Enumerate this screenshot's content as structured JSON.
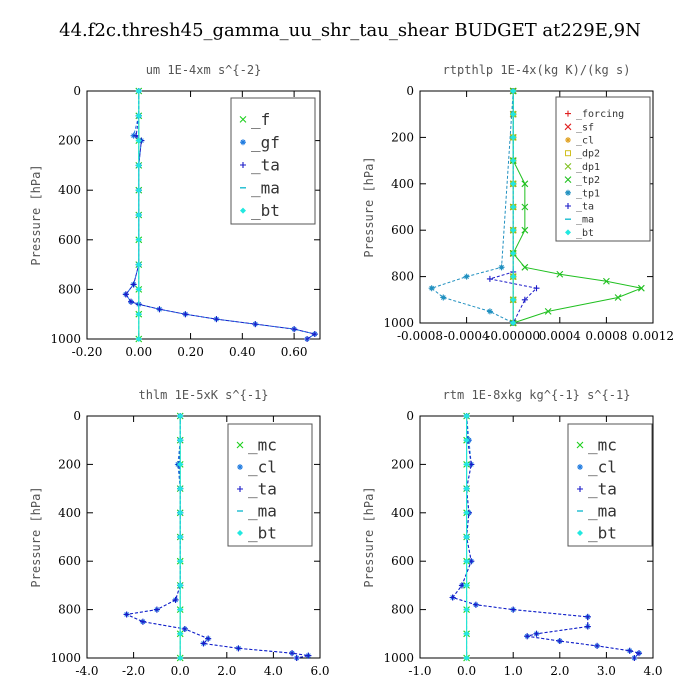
{
  "figure_title": "44.f2c.thresh45_gamma_uu_shr_tau_shear  BUDGET at229E,9N",
  "chart_data": [
    {
      "type": "line",
      "title": "um   1E-4xm s^{-2}",
      "ylabel": "Pressure [hPa]",
      "xlim": [
        -0.2,
        0.7
      ],
      "ylim": [
        1000,
        0
      ],
      "xticks": [
        "-0.20",
        "0.00",
        "0.20",
        "0.40",
        "0.60"
      ],
      "xtick_values": [
        -0.2,
        0.0,
        0.2,
        0.4,
        0.6
      ],
      "yticks": [
        "0",
        "200",
        "400",
        "600",
        "800",
        "1000"
      ],
      "ytick_values": [
        0,
        200,
        400,
        600,
        800,
        1000
      ],
      "legend_font": 16,
      "series": [
        {
          "name": "_f",
          "color": "#1fd01f",
          "marker": "x",
          "x": [
            0,
            0,
            0,
            0,
            0,
            0,
            0,
            0,
            0,
            0,
            0
          ],
          "y": [
            0,
            100,
            200,
            300,
            400,
            500,
            600,
            700,
            800,
            900,
            1000
          ]
        },
        {
          "name": "_gf",
          "color": "#1f7be0",
          "marker": "*",
          "x": [
            0,
            0,
            -0.02,
            0.01,
            0,
            0,
            0,
            0,
            -0.02,
            -0.05,
            -0.03,
            0,
            0.08,
            0.18,
            0.3,
            0.45,
            0.6,
            0.68,
            0.65
          ],
          "y": [
            0,
            100,
            180,
            200,
            300,
            400,
            500,
            700,
            780,
            820,
            850,
            860,
            880,
            900,
            920,
            940,
            960,
            980,
            1000
          ]
        },
        {
          "name": "_ta",
          "color": "#1a1ac8",
          "marker": "+",
          "x": [
            0,
            0,
            -0.01,
            0.01,
            0,
            0,
            0,
            0,
            -0.02,
            -0.05,
            -0.03,
            0,
            0.08,
            0.18,
            0.3,
            0.45,
            0.6,
            0.68,
            0.65
          ],
          "y": [
            0,
            100,
            180,
            200,
            300,
            400,
            500,
            700,
            780,
            820,
            850,
            860,
            880,
            900,
            920,
            940,
            960,
            980,
            1000
          ]
        },
        {
          "name": "_ma",
          "color": "#1abcd0",
          "marker": "-",
          "x": [
            0,
            0,
            0,
            0,
            0,
            0,
            0,
            0,
            0,
            0,
            0
          ],
          "y": [
            0,
            100,
            200,
            300,
            400,
            500,
            600,
            700,
            800,
            900,
            1000
          ]
        },
        {
          "name": "_bt",
          "color": "#22e8e0",
          "marker": "d",
          "x": [
            0,
            0,
            0,
            0,
            0,
            0,
            0,
            0,
            0,
            0,
            0
          ],
          "y": [
            0,
            100,
            200,
            300,
            400,
            500,
            600,
            700,
            800,
            900,
            1000
          ]
        }
      ]
    },
    {
      "type": "line",
      "title": "rtpthlp   1E-4x(kg K)/(kg s)",
      "ylabel": "Pressure [hPa]",
      "xlim": [
        -0.0008,
        0.0012
      ],
      "ylim": [
        1000,
        0
      ],
      "xticks": [
        "-0.0008",
        "-0.0004",
        "-0.00000",
        "0.0004",
        "0.0008",
        "0.0012"
      ],
      "xtick_values": [
        -0.0008,
        -0.0004,
        0.0,
        0.0004,
        0.0008,
        0.0012
      ],
      "yticks": [
        "0",
        "200",
        "400",
        "600",
        "800",
        "1000"
      ],
      "ytick_values": [
        0,
        200,
        400,
        600,
        800,
        1000
      ],
      "legend_font": 10,
      "series": [
        {
          "name": "_forcing",
          "color": "#e02020",
          "marker": "+",
          "x": [
            0,
            0,
            0,
            0,
            0,
            0,
            0,
            0,
            0,
            0,
            0
          ],
          "y": [
            0,
            100,
            200,
            300,
            400,
            500,
            600,
            700,
            800,
            900,
            1000
          ]
        },
        {
          "name": "_sf",
          "color": "#e02020",
          "marker": "x",
          "x": [
            0,
            0,
            0,
            0,
            0,
            0,
            0,
            0,
            0,
            0,
            0
          ],
          "y": [
            0,
            100,
            200,
            300,
            400,
            500,
            600,
            700,
            800,
            900,
            1000
          ]
        },
        {
          "name": "_cl",
          "color": "#e0a020",
          "marker": "*",
          "x": [
            0,
            0,
            0,
            0,
            0,
            0,
            0,
            0,
            0,
            0,
            0
          ],
          "y": [
            0,
            100,
            200,
            300,
            400,
            500,
            600,
            700,
            800,
            900,
            1000
          ]
        },
        {
          "name": "_dp2",
          "color": "#d0c020",
          "marker": "s",
          "x": [
            0,
            0,
            0,
            0,
            0,
            0,
            0,
            0,
            0,
            0,
            0
          ],
          "y": [
            0,
            100,
            200,
            300,
            400,
            500,
            600,
            700,
            800,
            900,
            1000
          ]
        },
        {
          "name": "_dp1",
          "color": "#80c020",
          "marker": "x",
          "x": [
            0,
            0,
            0,
            0,
            0,
            0,
            0,
            0,
            0,
            0,
            0
          ],
          "y": [
            0,
            100,
            200,
            300,
            400,
            500,
            600,
            700,
            800,
            900,
            1000
          ]
        },
        {
          "name": "_tp2",
          "color": "#20c020",
          "marker": "x",
          "x": [
            0,
            0,
            0.0001,
            0.0001,
            0.0001,
            0,
            0.0001,
            0.0004,
            0.0008,
            0.0011,
            0.0009,
            0.0003,
            0
          ],
          "y": [
            0,
            300,
            400,
            500,
            600,
            700,
            760,
            790,
            820,
            850,
            890,
            950,
            1000
          ]
        },
        {
          "name": "_tp1",
          "color": "#2090c0",
          "marker": "*",
          "x": [
            0,
            -0.0001,
            -0.0004,
            -0.0007,
            -0.0006,
            -0.0002,
            0
          ],
          "y": [
            0,
            760,
            800,
            850,
            890,
            950,
            1000
          ]
        },
        {
          "name": "_ta",
          "color": "#1a1ac8",
          "marker": "+",
          "x": [
            0,
            0,
            -0.0002,
            0.0002,
            0.0001,
            0
          ],
          "y": [
            0,
            780,
            810,
            850,
            900,
            1000
          ]
        },
        {
          "name": "_ma",
          "color": "#1abcd0",
          "marker": "-",
          "x": [
            0,
            0,
            0,
            0,
            0,
            0,
            0,
            0,
            0,
            0,
            0
          ],
          "y": [
            0,
            100,
            200,
            300,
            400,
            500,
            600,
            700,
            800,
            900,
            1000
          ]
        },
        {
          "name": "_bt",
          "color": "#22e8e0",
          "marker": "d",
          "x": [
            0,
            0,
            0,
            0,
            0,
            0,
            0,
            0,
            0,
            0,
            0
          ],
          "y": [
            0,
            100,
            200,
            300,
            400,
            500,
            600,
            700,
            800,
            900,
            1000
          ]
        }
      ]
    },
    {
      "type": "line",
      "title": "thlm   1E-5xK s^{-1}",
      "ylabel": "Pressure [hPa]",
      "xlim": [
        -4.0,
        6.0
      ],
      "ylim": [
        1000,
        0
      ],
      "xticks": [
        "-4.0",
        "-2.0",
        "0.0",
        "2.0",
        "4.0",
        "6.0"
      ],
      "xtick_values": [
        -4,
        -2,
        0,
        2,
        4,
        6
      ],
      "yticks": [
        "0",
        "200",
        "400",
        "600",
        "800",
        "1000"
      ],
      "ytick_values": [
        0,
        200,
        400,
        600,
        800,
        1000
      ],
      "legend_font": 16,
      "series": [
        {
          "name": "_mc",
          "color": "#1fd01f",
          "marker": "x",
          "x": [
            0,
            0,
            0,
            0,
            0,
            0,
            0,
            0,
            0,
            0,
            0
          ],
          "y": [
            0,
            100,
            200,
            300,
            400,
            500,
            600,
            700,
            800,
            900,
            1000
          ]
        },
        {
          "name": "_cl",
          "color": "#1f7be0",
          "marker": "*",
          "x": [
            0,
            0,
            -0.1,
            0,
            0,
            0,
            0,
            -0.2,
            -1.0,
            -2.3,
            -1.6,
            0.2,
            1.2,
            1.0,
            2.5,
            4.8,
            5.5,
            5.0
          ],
          "y": [
            0,
            100,
            200,
            300,
            400,
            500,
            700,
            760,
            800,
            820,
            850,
            880,
            920,
            940,
            960,
            980,
            990,
            1000
          ]
        },
        {
          "name": "_ta",
          "color": "#1a1ac8",
          "marker": "+",
          "x": [
            0,
            0,
            -0.05,
            0,
            0,
            0,
            0,
            -0.2,
            -1.0,
            -2.3,
            -1.6,
            0.2,
            1.2,
            1.0,
            2.5,
            4.8,
            5.5,
            5.0
          ],
          "y": [
            0,
            100,
            200,
            300,
            400,
            500,
            700,
            760,
            800,
            820,
            850,
            880,
            920,
            940,
            960,
            980,
            990,
            1000
          ]
        },
        {
          "name": "_ma",
          "color": "#1abcd0",
          "marker": "-",
          "x": [
            0,
            0,
            0,
            0,
            0,
            0,
            0,
            0,
            0,
            0,
            0
          ],
          "y": [
            0,
            100,
            200,
            300,
            400,
            500,
            600,
            700,
            800,
            900,
            1000
          ]
        },
        {
          "name": "_bt",
          "color": "#22e8e0",
          "marker": "d",
          "x": [
            0,
            0,
            0,
            0,
            0,
            0,
            0,
            0,
            0,
            0,
            0
          ],
          "y": [
            0,
            100,
            200,
            300,
            400,
            500,
            600,
            700,
            800,
            900,
            1000
          ]
        }
      ]
    },
    {
      "type": "line",
      "title": "rtm   1E-8xkg kg^{-1} s^{-1}",
      "ylabel": "Pressure [hPa]",
      "xlim": [
        -1.0,
        4.0
      ],
      "ylim": [
        1000,
        0
      ],
      "xticks": [
        "-1.0",
        "0.0",
        "1.0",
        "2.0",
        "3.0",
        "4.0"
      ],
      "xtick_values": [
        -1,
        0,
        1,
        2,
        3,
        4
      ],
      "yticks": [
        "0",
        "200",
        "400",
        "600",
        "800",
        "1000"
      ],
      "ytick_values": [
        0,
        200,
        400,
        600,
        800,
        1000
      ],
      "legend_font": 16,
      "series": [
        {
          "name": "_mc",
          "color": "#1fd01f",
          "marker": "x",
          "x": [
            0,
            0,
            0,
            0,
            0,
            0,
            0,
            0,
            0,
            0,
            0
          ],
          "y": [
            0,
            100,
            200,
            300,
            400,
            500,
            600,
            700,
            800,
            900,
            1000
          ]
        },
        {
          "name": "_cl",
          "color": "#1f7be0",
          "marker": "*",
          "x": [
            0,
            0.05,
            0.1,
            0,
            0.05,
            0,
            0.1,
            -0.1,
            -0.3,
            0.2,
            1.0,
            2.6,
            2.6,
            1.5,
            1.3,
            2.0,
            2.8,
            3.5,
            3.7,
            3.6
          ],
          "y": [
            0,
            100,
            200,
            300,
            400,
            500,
            600,
            700,
            750,
            780,
            800,
            830,
            870,
            900,
            910,
            930,
            950,
            970,
            980,
            1000
          ]
        },
        {
          "name": "_ta",
          "color": "#1a1ac8",
          "marker": "+",
          "x": [
            0,
            0.02,
            0.1,
            0,
            0.05,
            0,
            0.1,
            -0.1,
            -0.3,
            0.2,
            1.0,
            2.6,
            2.6,
            1.5,
            1.3,
            2.0,
            2.8,
            3.5,
            3.7,
            3.6
          ],
          "y": [
            0,
            100,
            200,
            300,
            400,
            500,
            600,
            700,
            750,
            780,
            800,
            830,
            870,
            900,
            910,
            930,
            950,
            970,
            980,
            1000
          ]
        },
        {
          "name": "_ma",
          "color": "#1abcd0",
          "marker": "-",
          "x": [
            0,
            0,
            0,
            0,
            0,
            0,
            0,
            0,
            0,
            0,
            0
          ],
          "y": [
            0,
            100,
            200,
            300,
            400,
            500,
            600,
            700,
            800,
            900,
            1000
          ]
        },
        {
          "name": "_bt",
          "color": "#22e8e0",
          "marker": "d",
          "x": [
            0,
            0,
            0,
            0,
            0,
            0,
            0,
            0,
            0,
            0,
            0
          ],
          "y": [
            0,
            100,
            200,
            300,
            400,
            500,
            600,
            700,
            800,
            900,
            1000
          ]
        }
      ]
    }
  ]
}
